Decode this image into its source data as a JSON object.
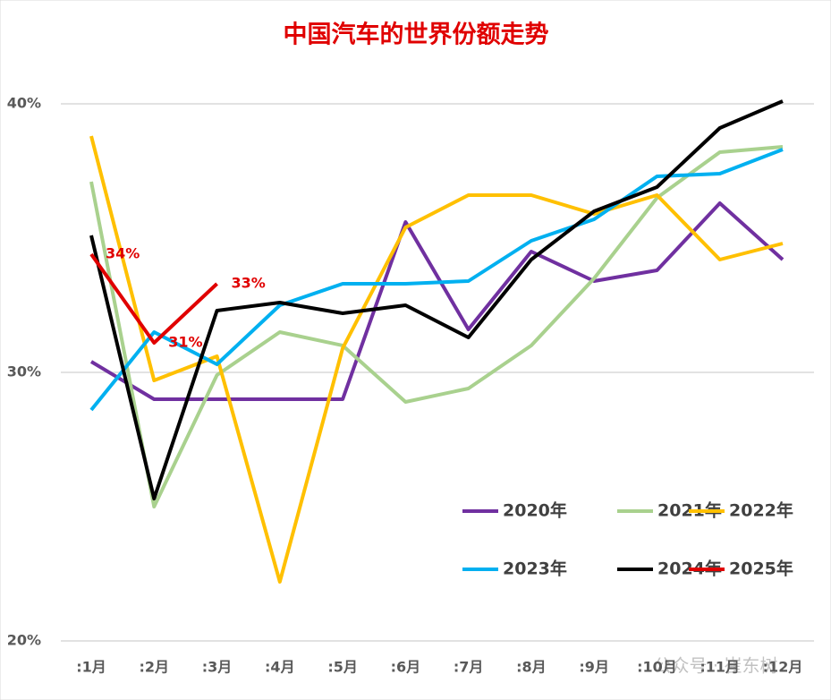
{
  "chart_data": {
    "type": "line",
    "title": "中国汽车的世界份额走势",
    "categories": [
      ":1月",
      ":2月",
      ":3月",
      ":4月",
      ":5月",
      ":6月",
      ":7月",
      ":8月",
      ":9月",
      ":10月",
      ":11月",
      ":12月"
    ],
    "series": [
      {
        "name": "2020年",
        "color": "#7030a0",
        "values": [
          30.4,
          29.0,
          29.0,
          29.0,
          29.0,
          35.6,
          31.6,
          34.5,
          33.4,
          33.8,
          36.3,
          34.2
        ]
      },
      {
        "name": "2021年",
        "color": "#a9d18e",
        "values": [
          37.1,
          25.0,
          29.9,
          31.5,
          31.0,
          28.9,
          29.4,
          31.0,
          33.5,
          36.5,
          38.2,
          38.4
        ]
      },
      {
        "name": "2022年",
        "color": "#ffc000",
        "values": [
          38.8,
          29.7,
          30.6,
          22.2,
          30.9,
          35.4,
          36.6,
          36.6,
          35.9,
          36.6,
          34.2,
          34.8
        ]
      },
      {
        "name": "2023年",
        "color": "#00b0f0",
        "values": [
          28.6,
          31.5,
          30.3,
          32.5,
          33.3,
          33.3,
          33.4,
          34.9,
          35.7,
          37.3,
          37.4,
          38.3
        ]
      },
      {
        "name": "2024年",
        "color": "#000000",
        "values": [
          35.1,
          25.3,
          32.3,
          32.6,
          32.2,
          32.5,
          31.3,
          34.2,
          36.0,
          36.9,
          39.1,
          40.1
        ]
      },
      {
        "name": "2025年",
        "color": "#e00000",
        "values": [
          34.4,
          31.1,
          33.3,
          null,
          null,
          null,
          null,
          null,
          null,
          null,
          null,
          null
        ],
        "value_labels": [
          "34%",
          "31%",
          "33%",
          null,
          null,
          null,
          null,
          null,
          null,
          null,
          null,
          null
        ]
      }
    ],
    "ylim": [
      20,
      41
    ],
    "yticks": [
      {
        "value": 20,
        "label": "20%"
      },
      {
        "value": 30,
        "label": "30%"
      },
      {
        "value": 40,
        "label": "40%"
      }
    ],
    "grid": true,
    "legend": "lower right",
    "watermark": "公众号 · 崔东树"
  }
}
